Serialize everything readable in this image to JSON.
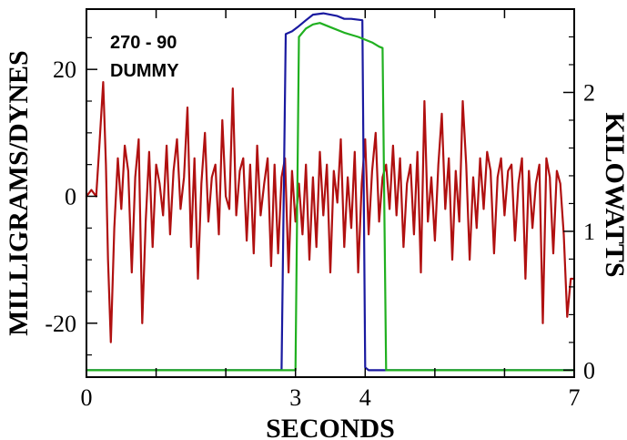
{
  "chart_data": {
    "type": "line",
    "xlabel": "SECONDS",
    "ylabel": "MILLIGRAMS/DYNES",
    "y2label": "KILOWATTS",
    "annotation_lines": [
      "270 - 90",
      "DUMMY"
    ],
    "xlim": [
      0,
      7
    ],
    "ylim": [
      -28.5,
      29.5
    ],
    "y2lim": [
      -0.05,
      2.6
    ],
    "x_ticks": [
      0,
      1,
      2,
      3,
      4,
      5,
      6,
      7
    ],
    "x_tick_labels": [
      "0",
      "",
      "",
      "3",
      "4",
      "",
      "",
      "7"
    ],
    "y_ticks": [
      -20,
      0,
      20
    ],
    "y_tick_labels": [
      "-20",
      "0",
      "20"
    ],
    "y_minor_ticks": [
      -25,
      -15,
      -10,
      -5,
      5,
      10,
      15,
      25
    ],
    "y2_ticks": [
      0,
      1,
      2
    ],
    "y2_tick_labels": [
      "0",
      "1",
      "2"
    ],
    "y2_minor_ticks": [
      0.2,
      0.4,
      0.6,
      0.8,
      1.2,
      1.4,
      1.6,
      1.8,
      2.2,
      2.4
    ],
    "grid": false,
    "legend": "none",
    "series": [
      {
        "axis": "left",
        "color": "#b01010",
        "x": [
          0.0,
          0.07,
          0.14,
          0.18,
          0.24,
          0.28,
          0.31,
          0.35,
          0.4,
          0.45,
          0.5,
          0.55,
          0.6,
          0.65,
          0.7,
          0.75,
          0.8,
          0.85,
          0.9,
          0.95,
          1.0,
          1.05,
          1.1,
          1.15,
          1.2,
          1.25,
          1.3,
          1.35,
          1.4,
          1.45,
          1.5,
          1.55,
          1.6,
          1.65,
          1.7,
          1.75,
          1.8,
          1.85,
          1.9,
          1.95,
          2.0,
          2.05,
          2.1,
          2.15,
          2.2,
          2.25,
          2.3,
          2.35,
          2.4,
          2.45,
          2.5,
          2.55,
          2.6,
          2.65,
          2.7,
          2.75,
          2.8,
          2.85,
          2.9,
          2.95,
          3.0,
          3.05,
          3.1,
          3.15,
          3.2,
          3.25,
          3.3,
          3.35,
          3.4,
          3.45,
          3.5,
          3.55,
          3.6,
          3.65,
          3.7,
          3.75,
          3.8,
          3.85,
          3.9,
          3.95,
          4.0,
          4.05,
          4.1,
          4.15,
          4.2,
          4.25,
          4.3,
          4.35,
          4.4,
          4.45,
          4.5,
          4.55,
          4.6,
          4.65,
          4.7,
          4.75,
          4.8,
          4.85,
          4.9,
          4.95,
          5.0,
          5.05,
          5.1,
          5.15,
          5.2,
          5.25,
          5.3,
          5.35,
          5.4,
          5.45,
          5.5,
          5.55,
          5.6,
          5.65,
          5.7,
          5.75,
          5.8,
          5.85,
          5.9,
          5.95,
          6.0,
          6.05,
          6.1,
          6.15,
          6.2,
          6.25,
          6.3,
          6.35,
          6.4,
          6.45,
          6.5,
          6.55,
          6.6,
          6.65,
          6.7,
          6.75,
          6.8,
          6.85,
          6.9,
          6.95,
          7.0
        ],
        "y": [
          0,
          1,
          0,
          7,
          18,
          5,
          -10,
          -23,
          -5,
          6,
          -2,
          8,
          4,
          -12,
          3,
          9,
          -20,
          -4,
          7,
          -8,
          5,
          2,
          -3,
          8,
          -6,
          4,
          9,
          -2,
          3,
          14,
          -8,
          6,
          -13,
          2,
          10,
          -4,
          3,
          5,
          -6,
          12,
          0,
          -2,
          17,
          -3,
          4,
          6,
          -7,
          5,
          -9,
          8,
          -3,
          2,
          6,
          -11,
          5,
          -9,
          3,
          6,
          -12,
          4,
          -4,
          2,
          -6,
          5,
          -10,
          3,
          -8,
          7,
          -3,
          5,
          -12,
          4,
          -1,
          9,
          -8,
          3,
          -5,
          7,
          -12,
          2,
          9,
          -6,
          4,
          10,
          -4,
          3,
          5,
          -2,
          8,
          -3,
          6,
          -8,
          2,
          5,
          -6,
          7,
          -12,
          15,
          -4,
          3,
          -7,
          5,
          13,
          -2,
          6,
          -10,
          4,
          -4,
          15,
          5,
          -10,
          3,
          -5,
          6,
          -2,
          7,
          4,
          -9,
          3,
          6,
          -3,
          4,
          5,
          -7,
          2,
          6,
          -13,
          4,
          -5,
          2,
          5,
          -20,
          6,
          3,
          -9,
          4,
          2,
          -6,
          -19,
          -13,
          -13
        ]
      },
      {
        "axis": "right",
        "color": "#1a1aa0",
        "x": [
          0.0,
          2.8,
          2.86,
          2.95,
          3.03,
          3.15,
          3.25,
          3.4,
          3.5,
          3.6,
          3.7,
          3.8,
          3.96,
          4.0,
          4.05,
          4.3,
          5.0,
          6.0,
          7.0
        ],
        "y": [
          0.0,
          0.0,
          2.42,
          2.44,
          2.47,
          2.52,
          2.56,
          2.57,
          2.56,
          2.55,
          2.53,
          2.53,
          2.52,
          0.02,
          0.0,
          0.0,
          0.0,
          0.0,
          0.0
        ]
      },
      {
        "axis": "right",
        "color": "#20b020",
        "x": [
          0.0,
          3.0,
          3.05,
          3.15,
          3.25,
          3.35,
          3.5,
          3.7,
          3.9,
          4.1,
          4.2,
          4.25,
          4.3,
          5.0,
          6.0,
          7.0
        ],
        "y": [
          0.0,
          0.0,
          2.4,
          2.46,
          2.49,
          2.5,
          2.47,
          2.43,
          2.4,
          2.36,
          2.33,
          2.32,
          0.0,
          0.0,
          0.0,
          0.0
        ]
      }
    ]
  }
}
